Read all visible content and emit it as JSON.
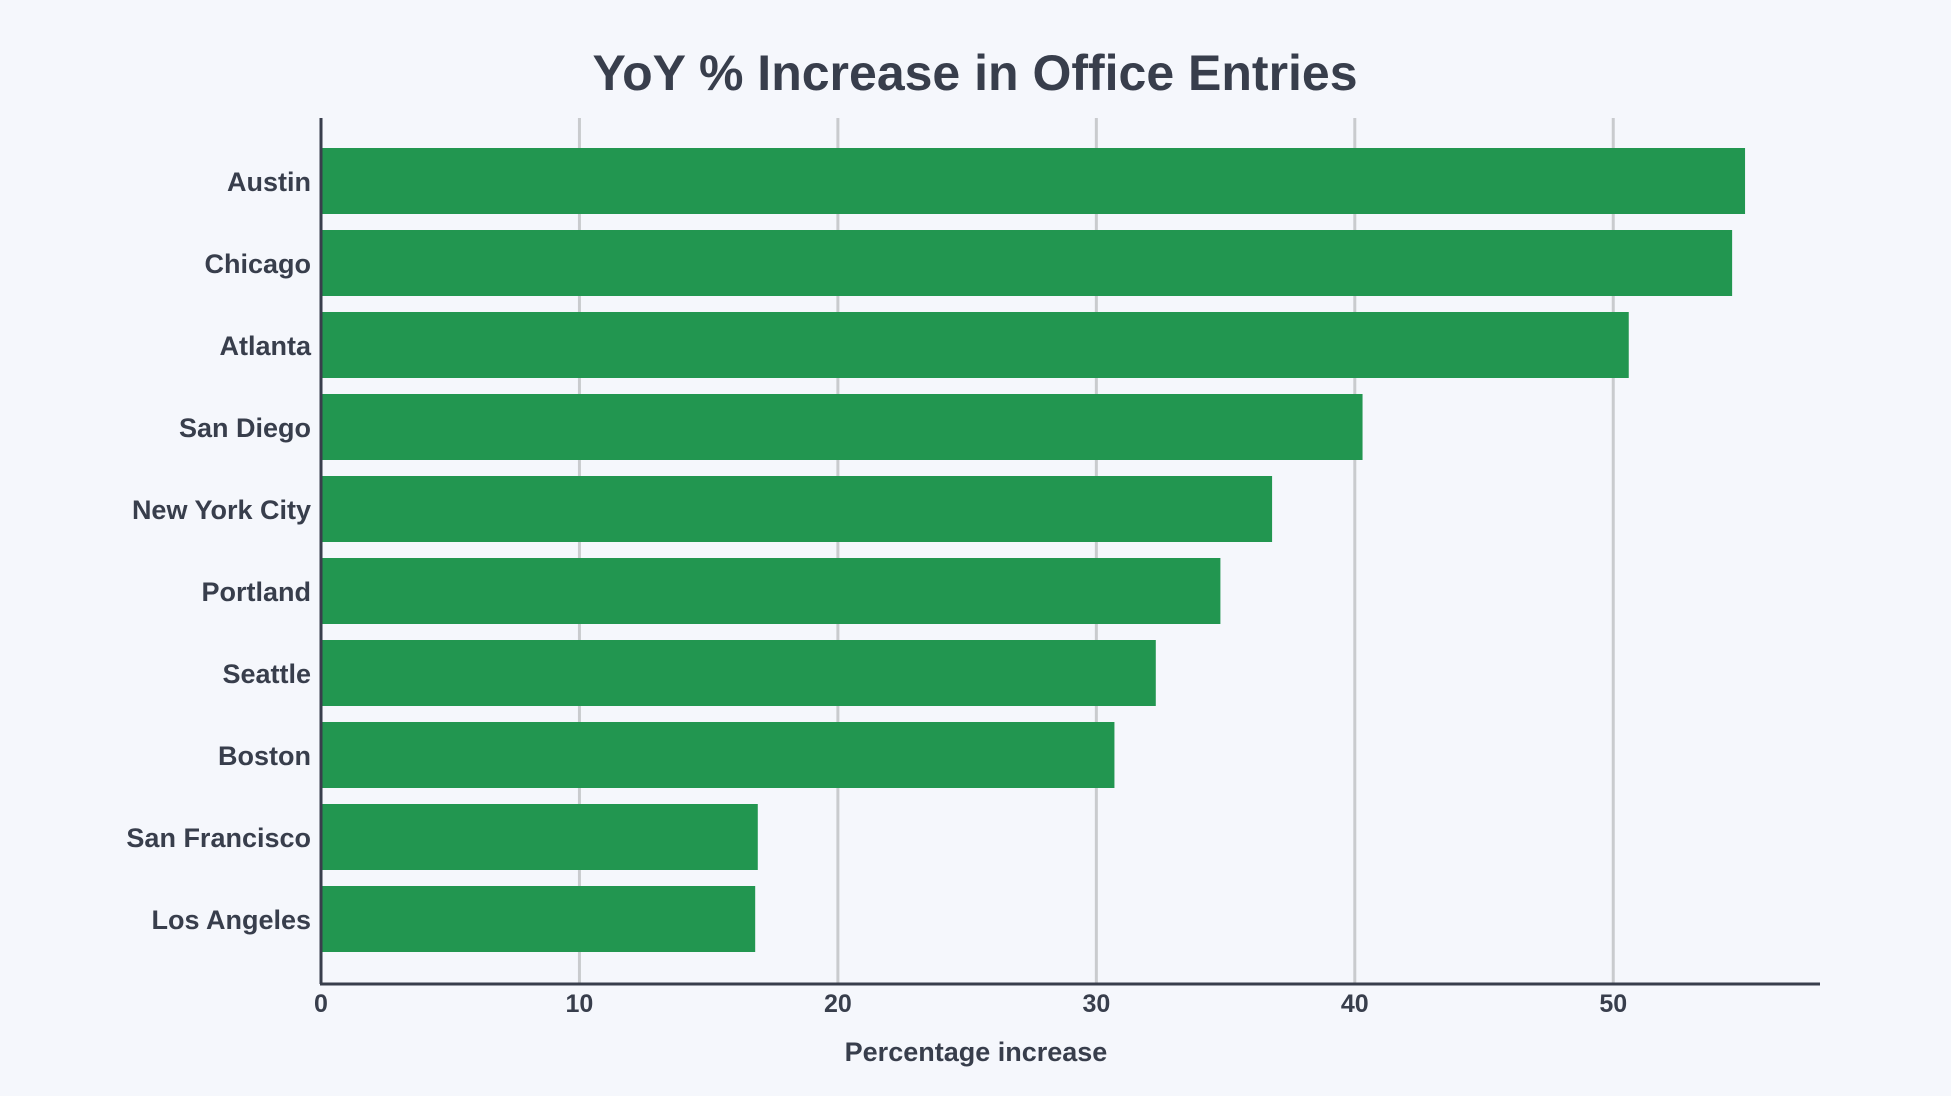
{
  "colors": {
    "background": "#f5f7fc",
    "bar": "#229650",
    "grid": "#c9cbce",
    "axis": "#383e4c",
    "text": "#383e4c"
  },
  "chart_data": {
    "type": "bar",
    "orientation": "horizontal",
    "title": "YoY % Increase in Office Entries",
    "xlabel": "Percentage increase",
    "ylabel": "",
    "categories": [
      "Austin",
      "Chicago",
      "Atlanta",
      "San Diego",
      "New York City",
      "Portland",
      "Seattle",
      "Boston",
      "San Francisco",
      "Los Angeles"
    ],
    "values": [
      55.1,
      54.6,
      50.6,
      40.3,
      36.8,
      34.8,
      32.3,
      30.7,
      16.9,
      16.8
    ],
    "xlim": [
      0,
      58
    ],
    "xticks": [
      0,
      10,
      20,
      30,
      40,
      50
    ],
    "grid": "vertical",
    "legend": "none"
  }
}
